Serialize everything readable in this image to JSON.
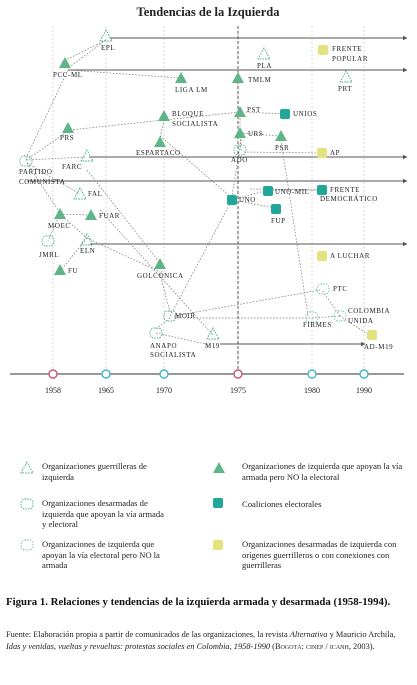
{
  "title": "Tendencias de la Izquierda",
  "years": [
    "1958",
    "1965",
    "1970",
    "1975",
    "1980",
    "1990"
  ],
  "colors": {
    "green": "#5fb488",
    "teal": "#21a69a",
    "yellow": "#e4e27e",
    "red": "#c8566f",
    "cyan": "#3fb6c2",
    "line": "#555"
  },
  "nodes": {
    "epl": "EPL",
    "pcc_ml": "PCC-ML",
    "liga_lm": "LIGA LM",
    "pla": "PLA",
    "tmlm": "TMLM",
    "frente_popular": "FRENTE POPULAR",
    "prt": "PRT",
    "prs": "PRS",
    "bloque_socialista": "BLOQUE SOCIALISTA",
    "espartaco": "ESPARTACO",
    "pst": "PST",
    "unios": "UNIOS",
    "urs": "URS",
    "psr": "PSR",
    "ado": "ADO",
    "ap": "AP",
    "partido_comunista": "PARTIDO COMUNISTA",
    "farc": "FARC",
    "fal": "FAL",
    "uno": "UNO",
    "uno_mil": "UNO-MIL",
    "frente_democratico": "FRENTE DEMOCRÁTICO",
    "fup": "FUP",
    "moec": "MOEC",
    "fuar": "FUAR",
    "jmrl": "JMRL",
    "eln": "ELN",
    "a_luchar": "A LUCHAR",
    "fu": "FU",
    "golconica": "GOLCÓNICA",
    "ptc": "PTC",
    "moir": "MOIR",
    "colombia_unida": "COLOMBIA UNIDA",
    "firmes": "FIRMES",
    "anapo_socialista": "ANAPO SOCIALISTA",
    "m19": "M19",
    "ad_m19": "AD-M19"
  },
  "legend": [
    {
      "icon": "dashed-triangle",
      "text": "Organizaciones guerrilleras de izquierda"
    },
    {
      "icon": "filled-triangle",
      "text": "Organizaciones de izquierda que apoyan la vía armada pero NO la electoral"
    },
    {
      "icon": "dashed-circle",
      "text": "Organizaciones desarmadas de izquierda que apoyan la vía armada y electoral"
    },
    {
      "icon": "teal-square",
      "text": "Coaliciones electorales"
    },
    {
      "icon": "dotted-circle",
      "text": "Organizaciones de izquierda que apoyan la vía electoral pero NO la armada"
    },
    {
      "icon": "yellow-square",
      "text": "Organizaciones desarmadas de izquierda con orígenes guerrilleros o con conexiones con guerrilleras"
    }
  ],
  "caption": "Figura 1. Relaciones y tendencias de la izquierda armada y desarmada (1958-1994).",
  "source": {
    "prefix": "Fuente: Elaboración propia a partir de comunicados de las organizaciones, la revista ",
    "magazine": "Alternativa",
    "middle": " y Mauricio Archila, ",
    "book": "Idas y venidas, vueltas y revueltas: protestas sociales en Colombia, 1958-1990",
    "suffix": " (Bogotá: cinep / icanh, 2003)."
  }
}
